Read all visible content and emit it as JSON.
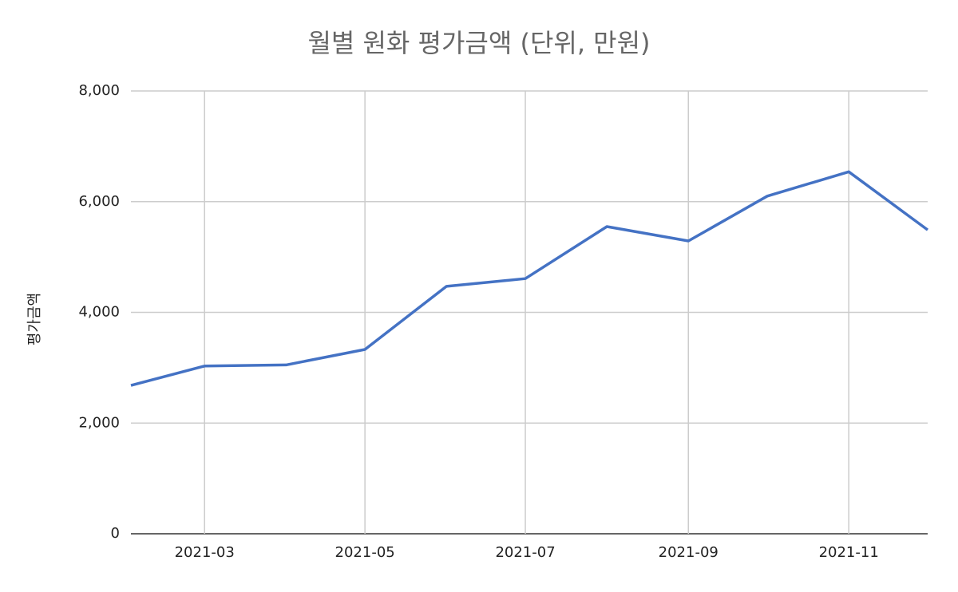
{
  "chart_data": {
    "type": "line",
    "title": "월별 원화 평가금액 (단위, 만원)",
    "y_label": "평가금액",
    "x": [
      "2021-02",
      "2021-03",
      "2021-04",
      "2021-05",
      "2021-06",
      "2021-07",
      "2021-08",
      "2021-09",
      "2021-10",
      "2021-11",
      "2021-12"
    ],
    "series": [
      {
        "name": "평가금액",
        "color": "#4472c4",
        "values": [
          2680,
          3030,
          3050,
          3330,
          4470,
          4610,
          5550,
          5290,
          6100,
          6540,
          5490
        ]
      }
    ],
    "xlim": [
      "2021-02",
      "2021-12"
    ],
    "xticks": [
      "2021-03",
      "2021-05",
      "2021-07",
      "2021-09",
      "2021-11"
    ],
    "ylim": [
      0,
      8000
    ],
    "yticks": [
      0,
      {
        "value": 2000,
        "label": "2,000"
      },
      {
        "value": 4000,
        "label": "4,000"
      },
      {
        "value": 6000,
        "label": "6,000"
      },
      {
        "value": 8000,
        "label": "8,000"
      }
    ],
    "grid": true
  }
}
